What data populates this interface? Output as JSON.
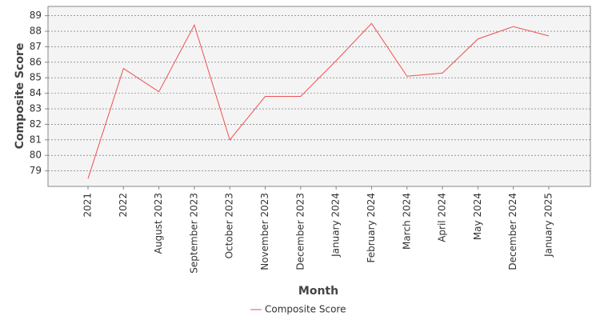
{
  "chart_data": {
    "type": "line",
    "x_label": "Month",
    "y_label": "Composite Score",
    "categories": [
      "2021",
      "2022",
      "August 2023",
      "September 2023",
      "October 2023",
      "November 2023",
      "December 2023",
      "January 2024",
      "February 2024",
      "March 2024",
      "April 2024",
      "May 2024",
      "December 2024",
      "January 2025"
    ],
    "series": [
      {
        "name": "Composite Score",
        "color": "#f05050",
        "values": [
          78.5,
          85.6,
          84.1,
          88.4,
          81.0,
          83.8,
          83.8,
          86.1,
          88.5,
          85.1,
          85.3,
          87.5,
          88.3,
          87.7
        ]
      }
    ],
    "ylim": [
      78,
      89.6
    ],
    "yticks": [
      79,
      80,
      81,
      82,
      83,
      84,
      85,
      86,
      87,
      88,
      89
    ],
    "grid": true,
    "legend": "bottom"
  }
}
